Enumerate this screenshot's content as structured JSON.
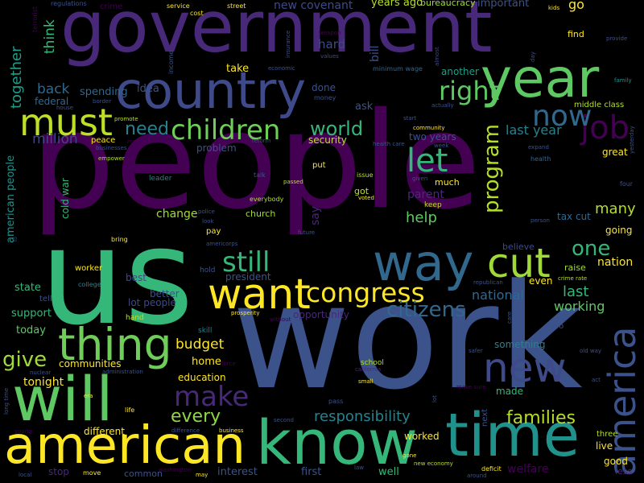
{
  "words": [
    {
      "text": "people",
      "color": "#440154",
      "vertical": false
    },
    {
      "text": "work",
      "color": "#3b528b",
      "vertical": false
    },
    {
      "text": "us",
      "color": "#35b779",
      "vertical": false
    },
    {
      "text": "government",
      "color": "#482878",
      "vertical": false
    },
    {
      "text": "country",
      "color": "#3e4a89",
      "vertical": false
    },
    {
      "text": "year",
      "color": "#5ec962",
      "vertical": false
    },
    {
      "text": "will",
      "color": "#5ec962",
      "vertical": false
    },
    {
      "text": "american",
      "color": "#fde725",
      "vertical": false
    },
    {
      "text": "know",
      "color": "#35b779",
      "vertical": false
    },
    {
      "text": "time",
      "color": "#21918c",
      "vertical": false
    },
    {
      "text": "way",
      "color": "#31688e",
      "vertical": false
    },
    {
      "text": "thing",
      "color": "#6ece58",
      "vertical": false
    },
    {
      "text": "want",
      "color": "#fde725",
      "vertical": false
    },
    {
      "text": "new",
      "color": "#3e4a89",
      "vertical": false
    },
    {
      "text": "america",
      "color": "#3b528b",
      "vertical": true
    },
    {
      "text": "cut",
      "color": "#a0da39",
      "vertical": false
    },
    {
      "text": "must",
      "color": "#bddf26",
      "vertical": false
    },
    {
      "text": "children",
      "color": "#6ece58",
      "vertical": false
    },
    {
      "text": "congress",
      "color": "#fde725",
      "vertical": false
    },
    {
      "text": "still",
      "color": "#35b779",
      "vertical": false
    },
    {
      "text": "job",
      "color": "#440154",
      "vertical": false
    },
    {
      "text": "now",
      "color": "#31688e",
      "vertical": false
    },
    {
      "text": "let",
      "color": "#35b779",
      "vertical": false
    },
    {
      "text": "make",
      "color": "#482878",
      "vertical": false
    },
    {
      "text": "right",
      "color": "#5ec962",
      "vertical": false
    },
    {
      "text": "program",
      "color": "#b5de2b",
      "vertical": true
    },
    {
      "text": "citizens",
      "color": "#31688e",
      "vertical": false
    },
    {
      "text": "families",
      "color": "#b5de2b",
      "vertical": false
    },
    {
      "text": "one",
      "color": "#35b779",
      "vertical": false
    },
    {
      "text": "give",
      "color": "#a0da39",
      "vertical": false
    },
    {
      "text": "world",
      "color": "#35b779",
      "vertical": false
    },
    {
      "text": "every",
      "color": "#8fd744",
      "vertical": false
    },
    {
      "text": "responsibility",
      "color": "#26828e",
      "vertical": false
    },
    {
      "text": "budget",
      "color": "#fde725",
      "vertical": false
    },
    {
      "text": "need",
      "color": "#26828e",
      "vertical": false
    },
    {
      "text": "million",
      "color": "#414487",
      "vertical": false
    },
    {
      "text": "back",
      "color": "#31688e",
      "vertical": false
    },
    {
      "text": "together",
      "color": "#1f9e89",
      "vertical": true
    },
    {
      "text": "think",
      "color": "#35b779",
      "vertical": true
    },
    {
      "text": "help",
      "color": "#5ec962",
      "vertical": false
    },
    {
      "text": "many",
      "color": "#b5de2b",
      "vertical": false
    },
    {
      "text": "last year",
      "color": "#26828e",
      "vertical": false
    },
    {
      "text": "last",
      "color": "#35b779",
      "vertical": false
    },
    {
      "text": "working",
      "color": "#5ec962",
      "vertical": false
    },
    {
      "text": "nation",
      "color": "#fde725",
      "vertical": false
    },
    {
      "text": "national",
      "color": "#31688e",
      "vertical": false
    },
    {
      "text": "new covenant",
      "color": "#3e4a89",
      "vertical": false
    },
    {
      "text": "hard",
      "color": "#3e4a89",
      "vertical": false
    },
    {
      "text": "bill",
      "color": "#3b528b",
      "vertical": true
    },
    {
      "text": "years ago",
      "color": "#b5de2b",
      "vertical": false
    },
    {
      "text": "go",
      "color": "#fde725",
      "vertical": false
    },
    {
      "text": "important",
      "color": "#3b528b",
      "vertical": false
    },
    {
      "text": "bureaucracy",
      "color": "#a0da39",
      "vertical": false
    },
    {
      "text": "find",
      "color": "#fde725",
      "vertical": false
    },
    {
      "text": "take",
      "color": "#fde725",
      "vertical": false
    },
    {
      "text": "spending",
      "color": "#31688e",
      "vertical": false
    },
    {
      "text": "idea",
      "color": "#3b528b",
      "vertical": false
    },
    {
      "text": "federal",
      "color": "#31688e",
      "vertical": false
    },
    {
      "text": "ask",
      "color": "#3b528b",
      "vertical": false
    },
    {
      "text": "done",
      "color": "#3b528b",
      "vertical": false
    },
    {
      "text": "another",
      "color": "#1f9e89",
      "vertical": false
    },
    {
      "text": "security",
      "color": "#bddf26",
      "vertical": false
    },
    {
      "text": "two years",
      "color": "#3b528b",
      "vertical": false
    },
    {
      "text": "problem",
      "color": "#3b528b",
      "vertical": false
    },
    {
      "text": "american people",
      "color": "#21918c",
      "vertical": true
    },
    {
      "text": "cold war",
      "color": "#35b779",
      "vertical": true
    },
    {
      "text": "change",
      "color": "#a0da39",
      "vertical": false
    },
    {
      "text": "say",
      "color": "#482878",
      "vertical": true
    },
    {
      "text": "parent",
      "color": "#482878",
      "vertical": false
    },
    {
      "text": "got",
      "color": "#bddf26",
      "vertical": false
    },
    {
      "text": "church",
      "color": "#a0da39",
      "vertical": false
    },
    {
      "text": "pay",
      "color": "#fde725",
      "vertical": false
    },
    {
      "text": "put",
      "color": "#fde725",
      "vertical": false
    },
    {
      "text": "tax cut",
      "color": "#31688e",
      "vertical": false
    },
    {
      "text": "going",
      "color": "#fde725",
      "vertical": false
    },
    {
      "text": "great",
      "color": "#fde725",
      "vertical": false
    },
    {
      "text": "believe",
      "color": "#3e4a89",
      "vertical": false
    },
    {
      "text": "raise",
      "color": "#a0da39",
      "vertical": false
    },
    {
      "text": "even",
      "color": "#fde725",
      "vertical": false
    },
    {
      "text": "president",
      "color": "#3b528b",
      "vertical": false
    },
    {
      "text": "state",
      "color": "#35b779",
      "vertical": false
    },
    {
      "text": "support",
      "color": "#35b779",
      "vertical": false
    },
    {
      "text": "today",
      "color": "#5ec962",
      "vertical": false
    },
    {
      "text": "opportunity",
      "color": "#482878",
      "vertical": false
    },
    {
      "text": "better",
      "color": "#3b528b",
      "vertical": false
    },
    {
      "text": "lot people",
      "color": "#3e4a89",
      "vertical": false
    },
    {
      "text": "best",
      "color": "#3e4a89",
      "vertical": false
    },
    {
      "text": "communities",
      "color": "#fde725",
      "vertical": false
    },
    {
      "text": "tonight",
      "color": "#fde725",
      "vertical": false
    },
    {
      "text": "home",
      "color": "#fde725",
      "vertical": false
    },
    {
      "text": "something",
      "color": "#26828e",
      "vertical": false
    },
    {
      "text": "education",
      "color": "#fde725",
      "vertical": false
    },
    {
      "text": "made",
      "color": "#35b779",
      "vertical": false
    },
    {
      "text": "two",
      "color": "#3b528b",
      "vertical": false
    },
    {
      "text": "different",
      "color": "#fde725",
      "vertical": false
    },
    {
      "text": "worked",
      "color": "#fde725",
      "vertical": false
    },
    {
      "text": "live",
      "color": "#fde725",
      "vertical": false
    },
    {
      "text": "good",
      "color": "#fde725",
      "vertical": false
    },
    {
      "text": "interest",
      "color": "#3b528b",
      "vertical": false
    },
    {
      "text": "first",
      "color": "#3b528b",
      "vertical": false
    },
    {
      "text": "well",
      "color": "#35b779",
      "vertical": false
    },
    {
      "text": "welfare",
      "color": "#440154",
      "vertical": false
    },
    {
      "text": "stop",
      "color": "#482878",
      "vertical": false
    },
    {
      "text": "common",
      "color": "#3b528b",
      "vertical": false
    },
    {
      "text": "less",
      "color": "#482878",
      "vertical": false
    },
    {
      "text": "worker",
      "color": "#fde725",
      "vertical": false
    },
    {
      "text": "next",
      "color": "#3b528b",
      "vertical": true
    },
    {
      "text": "three",
      "color": "#b5de2b",
      "vertical": false
    },
    {
      "text": "skill",
      "color": "#26828e",
      "vertical": false
    },
    {
      "text": "school",
      "color": "#b5de2b",
      "vertical": false
    },
    {
      "text": "middle class",
      "color": "#b5de2b",
      "vertical": false
    },
    {
      "text": "health",
      "color": "#31688e",
      "vertical": false
    },
    {
      "text": "keep",
      "color": "#bddf26",
      "vertical": false
    },
    {
      "text": "much",
      "color": "#fde725",
      "vertical": false
    },
    {
      "text": "leader",
      "color": "#26828e",
      "vertical": false
    },
    {
      "text": "peace",
      "color": "#fde725",
      "vertical": false
    },
    {
      "text": "hold",
      "color": "#3b528b",
      "vertical": false
    },
    {
      "text": "tell",
      "color": "#3b528b",
      "vertical": false
    },
    {
      "text": "hand",
      "color": "#bddf26",
      "vertical": false
    },
    {
      "text": "college",
      "color": "#26828e",
      "vertical": false
    },
    {
      "text": "crime",
      "color": "#440154",
      "vertical": false
    },
    {
      "text": "service",
      "color": "#fde725",
      "vertical": false
    },
    {
      "text": "cost",
      "color": "#fde725",
      "vertical": false
    },
    {
      "text": "street",
      "color": "#fde725",
      "vertical": false
    },
    {
      "text": "regulations",
      "color": "#3b528b",
      "vertical": false
    },
    {
      "text": "weapon",
      "color": "#440154",
      "vertical": false
    },
    {
      "text": "values",
      "color": "#3e4a89",
      "vertical": false
    },
    {
      "text": "kids",
      "color": "#fde725",
      "vertical": false
    },
    {
      "text": "provide",
      "color": "#3b528b",
      "vertical": false
    },
    {
      "text": "minimum wage",
      "color": "#31688e",
      "vertical": false
    },
    {
      "text": "family",
      "color": "#21918c",
      "vertical": false
    },
    {
      "text": "community",
      "color": "#fde725",
      "vertical": false
    },
    {
      "text": "week",
      "color": "#3b528b",
      "vertical": false
    },
    {
      "text": "expand",
      "color": "#3b528b",
      "vertical": false
    },
    {
      "text": "health care",
      "color": "#3b528b",
      "vertical": false
    },
    {
      "text": "four",
      "color": "#3b528b",
      "vertical": false
    },
    {
      "text": "member",
      "color": "#440154",
      "vertical": false
    },
    {
      "text": "businesses",
      "color": "#3b528b",
      "vertical": false
    },
    {
      "text": "promote",
      "color": "#b5de2b",
      "vertical": false
    },
    {
      "text": "empower",
      "color": "#b5de2b",
      "vertical": false
    },
    {
      "text": "actually",
      "color": "#3b528b",
      "vertical": false
    },
    {
      "text": "money",
      "color": "#3b528b",
      "vertical": false
    },
    {
      "text": "economic",
      "color": "#3b528b",
      "vertical": false
    },
    {
      "text": "income",
      "color": "#3b528b",
      "vertical": true
    },
    {
      "text": "insurance",
      "color": "#3b528b",
      "vertical": true
    },
    {
      "text": "terrorist",
      "color": "#440154",
      "vertical": true
    },
    {
      "text": "day",
      "color": "#3b528b",
      "vertical": true
    },
    {
      "text": "yesterday",
      "color": "#3b528b",
      "vertical": true
    },
    {
      "text": "almost",
      "color": "#3e4a89",
      "vertical": true
    },
    {
      "text": "reform",
      "color": "#3b528b",
      "vertical": false
    },
    {
      "text": "talk",
      "color": "#3b528b",
      "vertical": false
    },
    {
      "text": "passed",
      "color": "#bddf26",
      "vertical": false
    },
    {
      "text": "everybody",
      "color": "#b5de2b",
      "vertical": false
    },
    {
      "text": "issue",
      "color": "#bddf26",
      "vertical": false
    },
    {
      "text": "voted",
      "color": "#fde725",
      "vertical": false
    },
    {
      "text": "given",
      "color": "#3b528b",
      "vertical": false
    },
    {
      "text": "police",
      "color": "#3b528b",
      "vertical": false
    },
    {
      "text": "look",
      "color": "#3b528b",
      "vertical": false
    },
    {
      "text": "future",
      "color": "#3b528b",
      "vertical": false
    },
    {
      "text": "bring",
      "color": "#fde725",
      "vertical": false
    },
    {
      "text": "americorps",
      "color": "#3b528b",
      "vertical": false
    },
    {
      "text": "person",
      "color": "#3b528b",
      "vertical": false
    },
    {
      "text": "republican",
      "color": "#3b528b",
      "vertical": false
    },
    {
      "text": "crime rate",
      "color": "#b5de2b",
      "vertical": false
    },
    {
      "text": "prosperity",
      "color": "#fde725",
      "vertical": false
    },
    {
      "text": "without",
      "color": "#440154",
      "vertical": false
    },
    {
      "text": "care",
      "color": "#3b528b",
      "vertical": true
    },
    {
      "text": "safer",
      "color": "#3b528b",
      "vertical": false
    },
    {
      "text": "old way",
      "color": "#3b528b",
      "vertical": false
    },
    {
      "text": "act",
      "color": "#3b528b",
      "vertical": false
    },
    {
      "text": "force",
      "color": "#440154",
      "vertical": false
    },
    {
      "text": "california",
      "color": "#482878",
      "vertical": false
    },
    {
      "text": "small",
      "color": "#fde725",
      "vertical": false
    },
    {
      "text": "nuclear",
      "color": "#3b528b",
      "vertical": false
    },
    {
      "text": "administration",
      "color": "#3b528b",
      "vertical": false
    },
    {
      "text": "era",
      "color": "#fde725",
      "vertical": false
    },
    {
      "text": "life",
      "color": "#fde725",
      "vertical": false
    },
    {
      "text": "difference",
      "color": "#3b528b",
      "vertical": false
    },
    {
      "text": "business",
      "color": "#fde725",
      "vertical": false
    },
    {
      "text": "second",
      "color": "#3b528b",
      "vertical": false
    },
    {
      "text": "make sure",
      "color": "#440154",
      "vertical": false
    },
    {
      "text": "lot",
      "color": "#3b528b",
      "vertical": true
    },
    {
      "text": "pass",
      "color": "#3b528b",
      "vertical": false
    },
    {
      "text": "long time",
      "color": "#3b528b",
      "vertical": true
    },
    {
      "text": "young",
      "color": "#440154",
      "vertical": false
    },
    {
      "text": "washington",
      "color": "#440154",
      "vertical": false
    },
    {
      "text": "may",
      "color": "#fde725",
      "vertical": false
    },
    {
      "text": "move",
      "color": "#fde725",
      "vertical": false
    },
    {
      "text": "local",
      "color": "#3b528b",
      "vertical": false
    },
    {
      "text": "law",
      "color": "#3b528b",
      "vertical": false
    },
    {
      "text": "gone",
      "color": "#fde725",
      "vertical": false
    },
    {
      "text": "new economy",
      "color": "#b5de2b",
      "vertical": false
    },
    {
      "text": "around",
      "color": "#3b528b",
      "vertical": false
    },
    {
      "text": "deficit",
      "color": "#fde725",
      "vertical": false
    },
    {
      "text": "start",
      "color": "#3b528b",
      "vertical": false
    },
    {
      "text": "house",
      "color": "#3b528b",
      "vertical": false
    },
    {
      "text": "border",
      "color": "#3b528b",
      "vertical": false
    },
    {
      "text": "fo",
      "color": "#3b528b",
      "vertical": true
    }
  ]
}
